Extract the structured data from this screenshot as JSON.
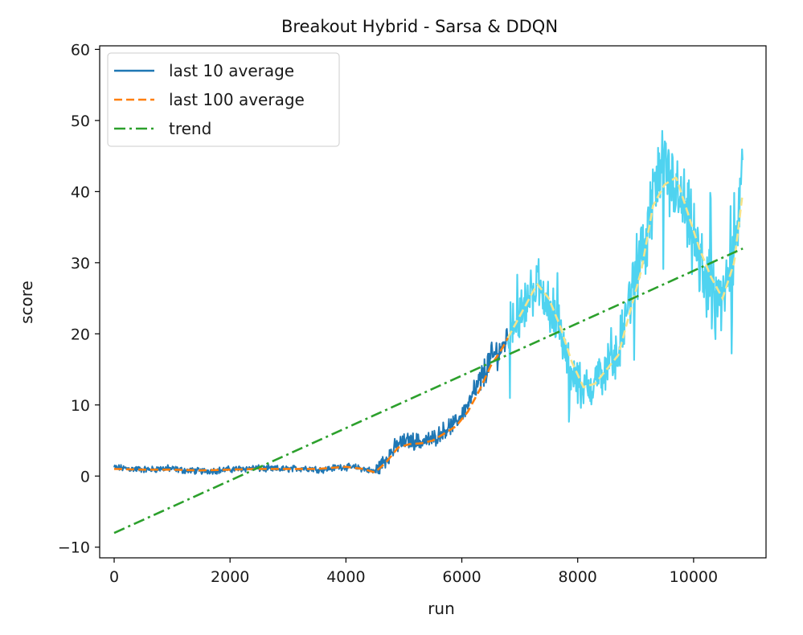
{
  "chart_data": {
    "type": "line",
    "title": "Breakout Hybrid - Sarsa & DDQN",
    "xlabel": "run",
    "ylabel": "score",
    "xlim": [
      -250,
      11250
    ],
    "ylim": [
      -11.5,
      60.5
    ],
    "xticks": [
      0,
      2000,
      4000,
      6000,
      8000,
      10000
    ],
    "yticks": [
      -10,
      0,
      10,
      20,
      30,
      40,
      50,
      60
    ],
    "grid": false,
    "legend_position": "top-left",
    "series": [
      {
        "name": "last 10 average",
        "style": "solid",
        "color": "#1f77b4",
        "color_late": "#4fd3f0",
        "x": [
          0,
          300,
          600,
          900,
          1200,
          1500,
          1800,
          2100,
          2400,
          2700,
          3000,
          3300,
          3600,
          3900,
          4200,
          4500,
          4700,
          4900,
          5100,
          5300,
          5500,
          5700,
          5900,
          6100,
          6300,
          6500,
          6700,
          6900,
          7100,
          7300,
          7500,
          7700,
          7900,
          8100,
          8300,
          8500,
          8700,
          8900,
          9100,
          9300,
          9500,
          9700,
          9900,
          10100,
          10300,
          10500,
          10700,
          10850
        ],
        "y": [
          1.2,
          1.0,
          0.9,
          1.1,
          0.8,
          0.7,
          0.8,
          1.0,
          1.1,
          1.0,
          1.0,
          1.1,
          0.9,
          1.3,
          1.2,
          0.6,
          2.5,
          4.5,
          5.0,
          4.8,
          5.2,
          6.5,
          7.5,
          10.0,
          13.0,
          16.5,
          18.0,
          22.0,
          24.0,
          27.5,
          24.0,
          20.0,
          15.0,
          11.5,
          13.5,
          15.0,
          17.5,
          25.0,
          30.0,
          40.0,
          43.0,
          40.0,
          36.0,
          30.0,
          26.0,
          24.0,
          32.0,
          42.0
        ]
      },
      {
        "name": "last 100 average",
        "style": "dashed",
        "color": "#ff7f0e",
        "color_late": "#f5e38a",
        "x": [
          0,
          500,
          1000,
          1500,
          2000,
          2500,
          3000,
          3500,
          4000,
          4300,
          4500,
          4700,
          4900,
          5100,
          5300,
          5500,
          5700,
          5900,
          6100,
          6300,
          6500,
          6700,
          6900,
          7100,
          7300,
          7500,
          7700,
          7900,
          8100,
          8300,
          8500,
          8700,
          8900,
          9100,
          9300,
          9500,
          9700,
          9900,
          10100,
          10300,
          10500,
          10700,
          10850
        ],
        "y": [
          1.0,
          0.9,
          0.9,
          0.8,
          0.9,
          1.0,
          1.0,
          1.0,
          1.3,
          1.0,
          0.5,
          2.0,
          4.0,
          4.5,
          4.6,
          5.0,
          6.0,
          7.0,
          9.0,
          12.0,
          15.5,
          18.0,
          21.0,
          24.0,
          27.0,
          25.0,
          21.0,
          16.0,
          12.5,
          13.0,
          15.0,
          17.0,
          23.0,
          29.0,
          38.0,
          41.0,
          42.0,
          37.0,
          32.0,
          28.0,
          25.0,
          30.0,
          40.0
        ]
      },
      {
        "name": "trend",
        "style": "dashdot",
        "color": "#2ca02c",
        "x": [
          0,
          10850
        ],
        "y": [
          -8.0,
          32.0
        ]
      }
    ]
  }
}
